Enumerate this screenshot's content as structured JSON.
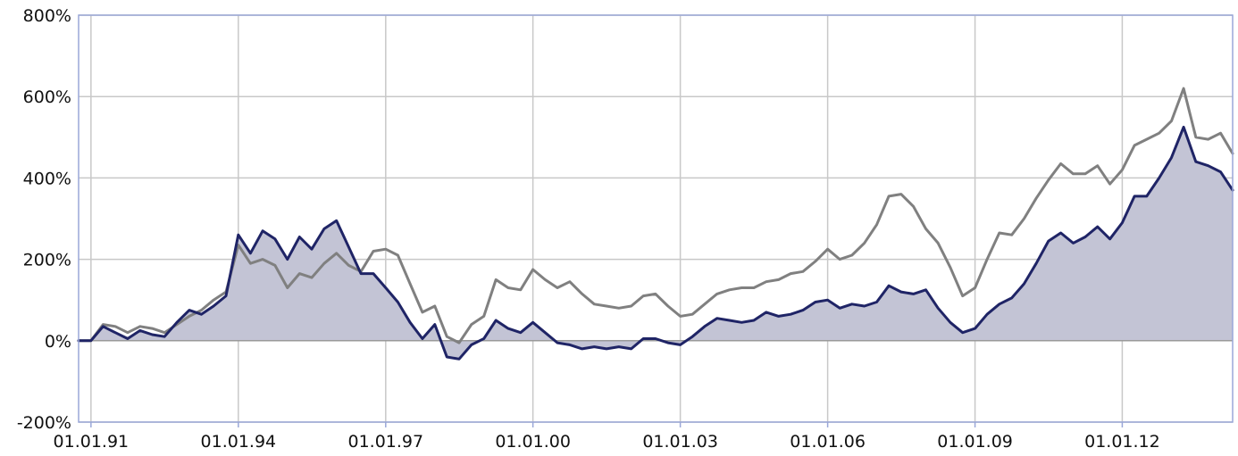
{
  "chart_data": {
    "type": "area",
    "xlim": [
      "1990-10-01",
      "2014-04-01"
    ],
    "ylim": [
      -200,
      800
    ],
    "y_unit": "%",
    "grid": true,
    "legend": "none",
    "yticks": [
      {
        "value": -200,
        "label": "-200%"
      },
      {
        "value": 0,
        "label": "0%"
      },
      {
        "value": 200,
        "label": "200%"
      },
      {
        "value": 400,
        "label": "400%"
      },
      {
        "value": 600,
        "label": "600%"
      },
      {
        "value": 800,
        "label": "800%"
      }
    ],
    "xticks": [
      {
        "date": "1991-01-01",
        "label": "01.01.91"
      },
      {
        "date": "1994-01-01",
        "label": "01.01.94"
      },
      {
        "date": "1997-01-01",
        "label": "01.01.97"
      },
      {
        "date": "2000-01-01",
        "label": "01.01.00"
      },
      {
        "date": "2003-01-01",
        "label": "01.01.03"
      },
      {
        "date": "2006-01-01",
        "label": "01.01.06"
      },
      {
        "date": "2009-01-01",
        "label": "01.01.09"
      },
      {
        "date": "2012-01-01",
        "label": "01.01.12"
      }
    ],
    "series": [
      {
        "color": "#1f2466",
        "fill": "#c3c4d5",
        "style": "area",
        "points": [
          [
            "1990-10-01",
            0
          ],
          [
            "1991-01-01",
            0
          ],
          [
            "1991-04-01",
            35
          ],
          [
            "1991-07-01",
            20
          ],
          [
            "1991-10-01",
            5
          ],
          [
            "1992-01-01",
            25
          ],
          [
            "1992-04-01",
            15
          ],
          [
            "1992-07-01",
            10
          ],
          [
            "1992-10-01",
            45
          ],
          [
            "1993-01-01",
            75
          ],
          [
            "1993-04-01",
            65
          ],
          [
            "1993-07-01",
            85
          ],
          [
            "1993-10-01",
            110
          ],
          [
            "1994-01-01",
            260
          ],
          [
            "1994-04-01",
            215
          ],
          [
            "1994-07-01",
            270
          ],
          [
            "1994-10-01",
            250
          ],
          [
            "1995-01-01",
            200
          ],
          [
            "1995-04-01",
            255
          ],
          [
            "1995-07-01",
            225
          ],
          [
            "1995-10-01",
            275
          ],
          [
            "1996-01-01",
            295
          ],
          [
            "1996-04-01",
            230
          ],
          [
            "1996-07-01",
            165
          ],
          [
            "1996-10-01",
            165
          ],
          [
            "1997-01-01",
            130
          ],
          [
            "1997-04-01",
            95
          ],
          [
            "1997-07-01",
            45
          ],
          [
            "1997-10-01",
            5
          ],
          [
            "1998-01-01",
            40
          ],
          [
            "1998-04-01",
            -40
          ],
          [
            "1998-07-01",
            -45
          ],
          [
            "1998-10-01",
            -10
          ],
          [
            "1999-01-01",
            5
          ],
          [
            "1999-04-01",
            50
          ],
          [
            "1999-07-01",
            30
          ],
          [
            "1999-10-01",
            20
          ],
          [
            "2000-01-01",
            45
          ],
          [
            "2000-04-01",
            20
          ],
          [
            "2000-07-01",
            -5
          ],
          [
            "2000-10-01",
            -10
          ],
          [
            "2001-01-01",
            -20
          ],
          [
            "2001-04-01",
            -15
          ],
          [
            "2001-07-01",
            -20
          ],
          [
            "2001-10-01",
            -15
          ],
          [
            "2002-01-01",
            -20
          ],
          [
            "2002-04-01",
            5
          ],
          [
            "2002-07-01",
            5
          ],
          [
            "2002-10-01",
            -5
          ],
          [
            "2003-01-01",
            -10
          ],
          [
            "2003-04-01",
            10
          ],
          [
            "2003-07-01",
            35
          ],
          [
            "2003-10-01",
            55
          ],
          [
            "2004-01-01",
            50
          ],
          [
            "2004-04-01",
            45
          ],
          [
            "2004-07-01",
            50
          ],
          [
            "2004-10-01",
            70
          ],
          [
            "2005-01-01",
            60
          ],
          [
            "2005-04-01",
            65
          ],
          [
            "2005-07-01",
            75
          ],
          [
            "2005-10-01",
            95
          ],
          [
            "2006-01-01",
            100
          ],
          [
            "2006-04-01",
            80
          ],
          [
            "2006-07-01",
            90
          ],
          [
            "2006-10-01",
            85
          ],
          [
            "2007-01-01",
            95
          ],
          [
            "2007-04-01",
            135
          ],
          [
            "2007-07-01",
            120
          ],
          [
            "2007-10-01",
            115
          ],
          [
            "2008-01-01",
            125
          ],
          [
            "2008-04-01",
            80
          ],
          [
            "2008-07-01",
            45
          ],
          [
            "2008-10-01",
            20
          ],
          [
            "2009-01-01",
            30
          ],
          [
            "2009-04-01",
            65
          ],
          [
            "2009-07-01",
            90
          ],
          [
            "2009-10-01",
            105
          ],
          [
            "2010-01-01",
            140
          ],
          [
            "2010-04-01",
            190
          ],
          [
            "2010-07-01",
            245
          ],
          [
            "2010-10-01",
            265
          ],
          [
            "2011-01-01",
            240
          ],
          [
            "2011-04-01",
            255
          ],
          [
            "2011-07-01",
            280
          ],
          [
            "2011-10-01",
            250
          ],
          [
            "2012-01-01",
            290
          ],
          [
            "2012-04-01",
            355
          ],
          [
            "2012-07-01",
            355
          ],
          [
            "2012-10-01",
            400
          ],
          [
            "2013-01-01",
            450
          ],
          [
            "2013-04-01",
            525
          ],
          [
            "2013-07-01",
            440
          ],
          [
            "2013-10-01",
            430
          ],
          [
            "2014-01-01",
            415
          ],
          [
            "2014-04-01",
            370
          ]
        ]
      },
      {
        "color": "#808080",
        "style": "line",
        "points": [
          [
            "1990-10-01",
            0
          ],
          [
            "1991-01-01",
            0
          ],
          [
            "1991-04-01",
            40
          ],
          [
            "1991-07-01",
            35
          ],
          [
            "1991-10-01",
            20
          ],
          [
            "1992-01-01",
            35
          ],
          [
            "1992-04-01",
            30
          ],
          [
            "1992-07-01",
            20
          ],
          [
            "1992-10-01",
            40
          ],
          [
            "1993-01-01",
            60
          ],
          [
            "1993-04-01",
            75
          ],
          [
            "1993-07-01",
            100
          ],
          [
            "1993-10-01",
            120
          ],
          [
            "1994-01-01",
            235
          ],
          [
            "1994-04-01",
            190
          ],
          [
            "1994-07-01",
            200
          ],
          [
            "1994-10-01",
            185
          ],
          [
            "1995-01-01",
            130
          ],
          [
            "1995-04-01",
            165
          ],
          [
            "1995-07-01",
            155
          ],
          [
            "1995-10-01",
            190
          ],
          [
            "1996-01-01",
            215
          ],
          [
            "1996-04-01",
            185
          ],
          [
            "1996-07-01",
            170
          ],
          [
            "1996-10-01",
            220
          ],
          [
            "1997-01-01",
            225
          ],
          [
            "1997-04-01",
            210
          ],
          [
            "1997-07-01",
            140
          ],
          [
            "1997-10-01",
            70
          ],
          [
            "1998-01-01",
            85
          ],
          [
            "1998-04-01",
            10
          ],
          [
            "1998-07-01",
            -5
          ],
          [
            "1998-10-01",
            40
          ],
          [
            "1999-01-01",
            60
          ],
          [
            "1999-04-01",
            150
          ],
          [
            "1999-07-01",
            130
          ],
          [
            "1999-10-01",
            125
          ],
          [
            "2000-01-01",
            175
          ],
          [
            "2000-04-01",
            150
          ],
          [
            "2000-07-01",
            130
          ],
          [
            "2000-10-01",
            145
          ],
          [
            "2001-01-01",
            115
          ],
          [
            "2001-04-01",
            90
          ],
          [
            "2001-07-01",
            85
          ],
          [
            "2001-10-01",
            80
          ],
          [
            "2002-01-01",
            85
          ],
          [
            "2002-04-01",
            110
          ],
          [
            "2002-07-01",
            115
          ],
          [
            "2002-10-01",
            85
          ],
          [
            "2003-01-01",
            60
          ],
          [
            "2003-04-01",
            65
          ],
          [
            "2003-07-01",
            90
          ],
          [
            "2003-10-01",
            115
          ],
          [
            "2004-01-01",
            125
          ],
          [
            "2004-04-01",
            130
          ],
          [
            "2004-07-01",
            130
          ],
          [
            "2004-10-01",
            145
          ],
          [
            "2005-01-01",
            150
          ],
          [
            "2005-04-01",
            165
          ],
          [
            "2005-07-01",
            170
          ],
          [
            "2005-10-01",
            195
          ],
          [
            "2006-01-01",
            225
          ],
          [
            "2006-04-01",
            200
          ],
          [
            "2006-07-01",
            210
          ],
          [
            "2006-10-01",
            240
          ],
          [
            "2007-01-01",
            285
          ],
          [
            "2007-04-01",
            355
          ],
          [
            "2007-07-01",
            360
          ],
          [
            "2007-10-01",
            330
          ],
          [
            "2008-01-01",
            275
          ],
          [
            "2008-04-01",
            240
          ],
          [
            "2008-07-01",
            180
          ],
          [
            "2008-10-01",
            110
          ],
          [
            "2009-01-01",
            130
          ],
          [
            "2009-04-01",
            200
          ],
          [
            "2009-07-01",
            265
          ],
          [
            "2009-10-01",
            260
          ],
          [
            "2010-01-01",
            300
          ],
          [
            "2010-04-01",
            350
          ],
          [
            "2010-07-01",
            395
          ],
          [
            "2010-10-01",
            435
          ],
          [
            "2011-01-01",
            410
          ],
          [
            "2011-04-01",
            410
          ],
          [
            "2011-07-01",
            430
          ],
          [
            "2011-10-01",
            385
          ],
          [
            "2012-01-01",
            420
          ],
          [
            "2012-04-01",
            480
          ],
          [
            "2012-07-01",
            495
          ],
          [
            "2012-10-01",
            510
          ],
          [
            "2013-01-01",
            540
          ],
          [
            "2013-04-01",
            620
          ],
          [
            "2013-07-01",
            500
          ],
          [
            "2013-10-01",
            495
          ],
          [
            "2014-01-01",
            510
          ],
          [
            "2014-04-01",
            460
          ]
        ]
      }
    ]
  }
}
